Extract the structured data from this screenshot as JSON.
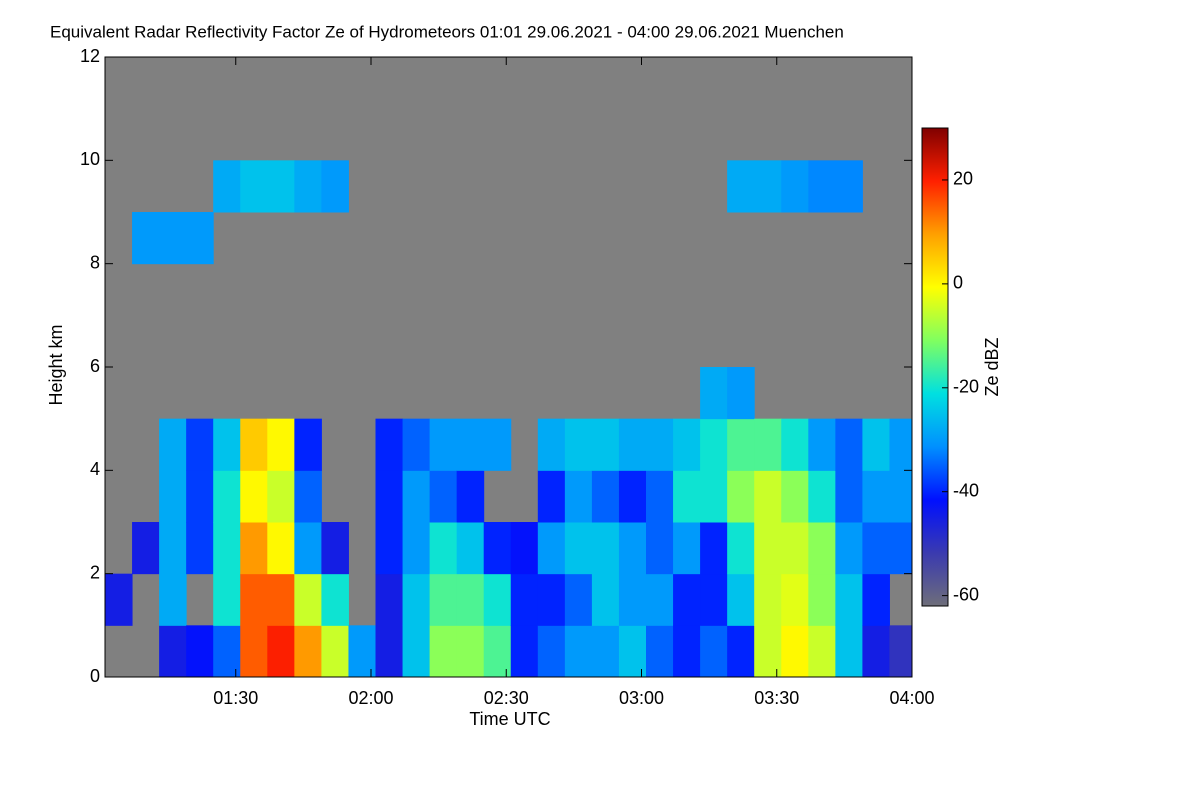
{
  "chart_data": {
    "type": "heatmap",
    "title": "Equivalent Radar Reflectivity Factor Ze of Hydrometeors   01:01 29.06.2021 - 04:00 29.06.2021 Muenchen",
    "x_label": "Time UTC",
    "y_label": "Height km",
    "colorbar_label": "Ze dBZ",
    "xlim": [
      61,
      240
    ],
    "xticks": [
      {
        "value": 90,
        "label": "01:30"
      },
      {
        "value": 120,
        "label": "02:00"
      },
      {
        "value": 150,
        "label": "02:30"
      },
      {
        "value": 180,
        "label": "03:00"
      },
      {
        "value": 210,
        "label": "03:30"
      },
      {
        "value": 240,
        "label": "04:00"
      }
    ],
    "ylim": [
      0,
      12
    ],
    "yticks": [
      0,
      2,
      4,
      6,
      8,
      10,
      12
    ],
    "zlim": [
      -62,
      30
    ],
    "zticks": [
      -60,
      -40,
      -20,
      0,
      20
    ],
    "background": "#808080",
    "colormap": [
      "#6e6e7a",
      "#3a3ab0",
      "#0010ff",
      "#0090ff",
      "#00e0e0",
      "#80ff60",
      "#ffff00",
      "#ffa000",
      "#ff2000",
      "#800000"
    ],
    "x_bins": [
      61,
      67,
      73,
      79,
      85,
      91,
      97,
      103,
      109,
      115,
      121,
      127,
      133,
      139,
      145,
      151,
      157,
      163,
      169,
      175,
      181,
      187,
      193,
      199,
      205,
      211,
      217,
      223,
      229,
      235,
      240
    ],
    "y_bins": [
      0,
      1,
      2,
      3,
      4,
      5,
      6,
      7,
      8,
      9,
      10,
      11,
      12
    ],
    "z": [
      [
        null,
        -45,
        null,
        null,
        null,
        null,
        null,
        null,
        null,
        null,
        null,
        null
      ],
      [
        null,
        null,
        -45,
        null,
        null,
        null,
        null,
        null,
        -30,
        null,
        null,
        null
      ],
      [
        -45,
        -28,
        -28,
        -28,
        -28,
        null,
        null,
        null,
        -30,
        null,
        null,
        null
      ],
      [
        -42,
        null,
        -38,
        -38,
        -38,
        null,
        null,
        null,
        -30,
        null,
        null,
        null
      ],
      [
        -35,
        -20,
        -20,
        -20,
        -25,
        null,
        null,
        null,
        null,
        -28,
        null,
        null
      ],
      [
        15,
        15,
        10,
        0,
        5,
        null,
        null,
        null,
        null,
        -25,
        null,
        null
      ],
      [
        20,
        15,
        0,
        -5,
        0,
        null,
        null,
        null,
        null,
        -25,
        null,
        null
      ],
      [
        10,
        -5,
        -30,
        -35,
        -40,
        null,
        null,
        null,
        null,
        -28,
        null,
        null
      ],
      [
        -5,
        -20,
        -45,
        null,
        null,
        null,
        null,
        null,
        null,
        -30,
        null,
        null
      ],
      [
        -30,
        null,
        null,
        null,
        null,
        null,
        null,
        null,
        null,
        null,
        null,
        null
      ],
      [
        -45,
        -45,
        -40,
        -40,
        -40,
        null,
        null,
        null,
        null,
        null,
        null,
        null
      ],
      [
        -25,
        -25,
        -30,
        -30,
        -35,
        null,
        null,
        null,
        null,
        null,
        null,
        null
      ],
      [
        -10,
        -15,
        -20,
        -35,
        -30,
        null,
        null,
        null,
        null,
        null,
        null,
        null
      ],
      [
        -10,
        -15,
        -25,
        -40,
        -30,
        null,
        null,
        null,
        null,
        null,
        null,
        null
      ],
      [
        -15,
        -20,
        -40,
        null,
        -30,
        null,
        null,
        null,
        null,
        null,
        null,
        null
      ],
      [
        -40,
        -40,
        -42,
        null,
        null,
        null,
        null,
        null,
        null,
        null,
        null,
        null
      ],
      [
        -35,
        -40,
        -30,
        -40,
        -28,
        null,
        null,
        null,
        null,
        null,
        null,
        null
      ],
      [
        -30,
        -35,
        -25,
        -30,
        -25,
        null,
        null,
        null,
        null,
        null,
        null,
        null
      ],
      [
        -30,
        -25,
        -25,
        -35,
        -25,
        null,
        null,
        null,
        null,
        null,
        null,
        null
      ],
      [
        -25,
        -30,
        -30,
        -40,
        -28,
        null,
        null,
        null,
        null,
        null,
        null,
        null
      ],
      [
        -35,
        -30,
        -35,
        -35,
        -28,
        null,
        null,
        null,
        null,
        null,
        null,
        null
      ],
      [
        -40,
        -40,
        -30,
        -20,
        -25,
        null,
        null,
        null,
        null,
        null,
        null,
        null
      ],
      [
        -35,
        -40,
        -40,
        -20,
        -20,
        -28,
        null,
        null,
        null,
        null,
        null,
        null
      ],
      [
        -40,
        -25,
        -20,
        -10,
        -15,
        -30,
        null,
        null,
        null,
        -28,
        null,
        null
      ],
      [
        -5,
        -5,
        -5,
        -5,
        -15,
        null,
        null,
        null,
        null,
        -28,
        null,
        null
      ],
      [
        0,
        -3,
        -5,
        -10,
        -20,
        null,
        null,
        null,
        null,
        -30,
        null,
        null
      ],
      [
        -5,
        -10,
        -10,
        -20,
        -30,
        null,
        null,
        null,
        null,
        -32,
        null,
        null
      ],
      [
        -25,
        -25,
        -30,
        -35,
        -35,
        null,
        null,
        null,
        null,
        -32,
        null,
        null
      ],
      [
        -45,
        -40,
        -35,
        -30,
        -25,
        null,
        null,
        null,
        null,
        null,
        null,
        null
      ],
      [
        -50,
        null,
        -35,
        -30,
        -30,
        null,
        null,
        null,
        null,
        null,
        null,
        null
      ]
    ]
  }
}
